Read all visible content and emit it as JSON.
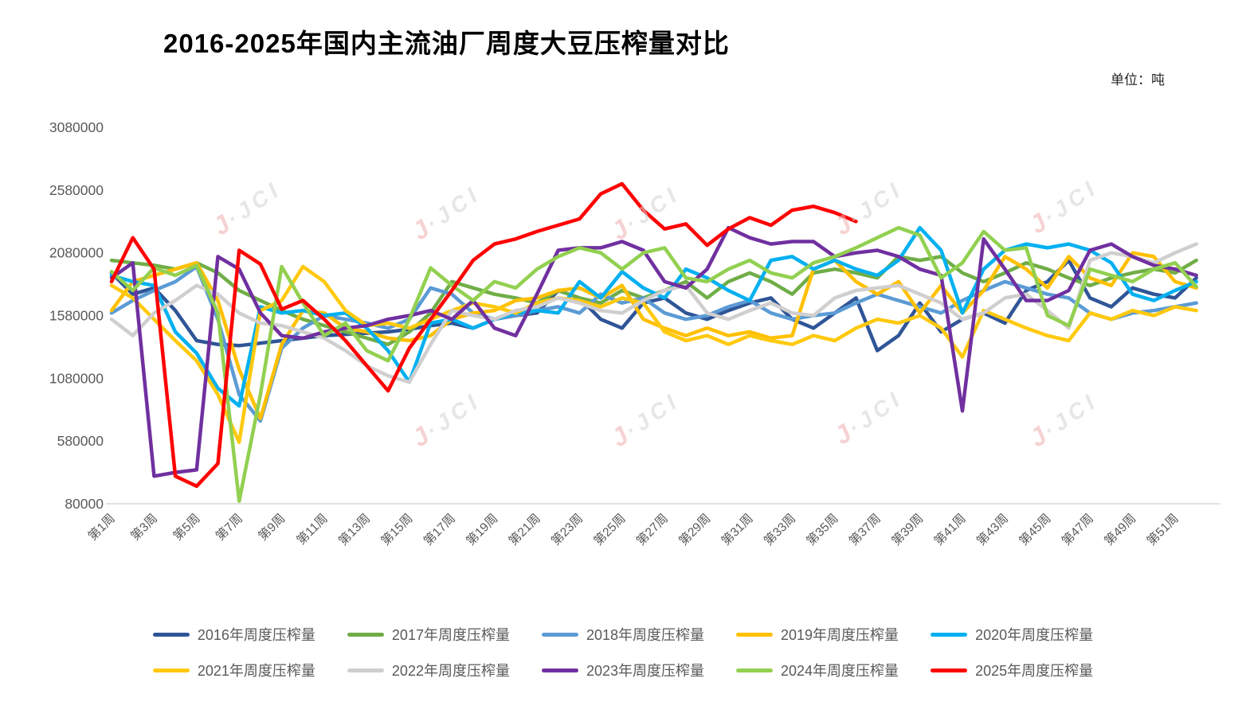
{
  "watermark": {
    "swoosh": "J",
    "text": "·JCI"
  },
  "chart_data": {
    "type": "line",
    "title": "2016-2025年国内主流油厂周度大豆压榨量对比",
    "unit_label": "单位：吨",
    "xlabel": "",
    "ylabel": "",
    "ylim": [
      80000,
      3080000
    ],
    "grid": false,
    "legend_position": "bottom",
    "y_ticks": [
      3080000,
      2580000,
      2080000,
      1580000,
      1080000,
      580000,
      80000
    ],
    "x_labels": [
      "第1周",
      "第3周",
      "第5周",
      "第7周",
      "第9周",
      "第11周",
      "第13周",
      "第15周",
      "第17周",
      "第19周",
      "第21周",
      "第23周",
      "第25周",
      "第27周",
      "第29周",
      "第31周",
      "第33周",
      "第35周",
      "第37周",
      "第39周",
      "第41周",
      "第43周",
      "第45周",
      "第47周",
      "第49周",
      "第51周"
    ],
    "weeks_total": 52,
    "series": [
      {
        "name": "2016年周度压榨量",
        "color": "#2F5597",
        "values": [
          1920000,
          1750000,
          1800000,
          1620000,
          1380000,
          1350000,
          1340000,
          1360000,
          1380000,
          1400000,
          1420000,
          1430000,
          1440000,
          1450000,
          1470000,
          1500000,
          1520000,
          1480000,
          1550000,
          1580000,
          1600000,
          1780000,
          1720000,
          1550000,
          1480000,
          1680000,
          1720000,
          1600000,
          1550000,
          1620000,
          1680000,
          1720000,
          1550000,
          1480000,
          1600000,
          1720000,
          1300000,
          1420000,
          1680000,
          1450000,
          1550000,
          1600000,
          1520000,
          1780000,
          1850000,
          2020000,
          1720000,
          1650000,
          1800000,
          1750000,
          1720000,
          1880000
        ]
      },
      {
        "name": "2017年周度压榨量",
        "color": "#70AD47",
        "values": [
          2020000,
          2000000,
          1980000,
          1950000,
          2000000,
          1920000,
          1780000,
          1700000,
          1620000,
          1550000,
          1500000,
          1450000,
          1400000,
          1350000,
          1450000,
          1600000,
          1850000,
          1800000,
          1750000,
          1720000,
          1680000,
          1780000,
          1720000,
          1680000,
          1780000,
          1720000,
          1780000,
          1850000,
          1720000,
          1850000,
          1920000,
          1850000,
          1750000,
          1920000,
          1950000,
          1920000,
          1880000,
          2050000,
          2020000,
          2050000,
          1920000,
          1850000,
          1920000,
          2000000,
          1950000,
          1880000,
          1820000,
          1880000,
          1920000,
          1950000,
          1920000,
          2020000
        ]
      },
      {
        "name": "2018年周度压榨量",
        "color": "#5B9BD5",
        "values": [
          1600000,
          1700000,
          1780000,
          1850000,
          1970000,
          1550000,
          950000,
          740000,
          1320000,
          1480000,
          1580000,
          1550000,
          1520000,
          1480000,
          1550000,
          1800000,
          1750000,
          1600000,
          1550000,
          1580000,
          1620000,
          1650000,
          1600000,
          1750000,
          1680000,
          1720000,
          1600000,
          1550000,
          1580000,
          1650000,
          1700000,
          1600000,
          1550000,
          1580000,
          1600000,
          1680000,
          1750000,
          1700000,
          1650000,
          1600000,
          1700000,
          1780000,
          1850000,
          1800000,
          1750000,
          1720000,
          1600000,
          1550000,
          1600000,
          1620000,
          1650000,
          1680000
        ]
      },
      {
        "name": "2019年周度压榨量",
        "color": "#FFC000",
        "values": [
          1620000,
          1850000,
          1900000,
          1950000,
          2000000,
          1700000,
          1150000,
          760000,
          1350000,
          1620000,
          1600000,
          1480000,
          1450000,
          1400000,
          1380000,
          1420000,
          1550000,
          1600000,
          1620000,
          1700000,
          1720000,
          1780000,
          1800000,
          1720000,
          1820000,
          1550000,
          1480000,
          1420000,
          1480000,
          1420000,
          1450000,
          1400000,
          1420000,
          1950000,
          2020000,
          1850000,
          1750000,
          1850000,
          1600000,
          1820000,
          1600000,
          1780000,
          2050000,
          1950000,
          1800000,
          2050000,
          1880000,
          1820000,
          2080000,
          2050000,
          1850000,
          1800000
        ]
      },
      {
        "name": "2020年周度压榨量",
        "color": "#00B0F0",
        "values": [
          1900000,
          1850000,
          1820000,
          1450000,
          1280000,
          1000000,
          860000,
          1650000,
          1600000,
          1620000,
          1580000,
          1600000,
          1480000,
          1300000,
          1050000,
          1520000,
          1550000,
          1480000,
          1550000,
          1600000,
          1620000,
          1600000,
          1850000,
          1720000,
          1930000,
          1800000,
          1720000,
          1950000,
          1880000,
          1780000,
          1700000,
          2020000,
          2050000,
          1950000,
          2020000,
          1950000,
          1900000,
          2020000,
          2280000,
          2100000,
          1600000,
          1950000,
          2100000,
          2150000,
          2120000,
          2150000,
          2100000,
          2000000,
          1750000,
          1700000,
          1780000,
          1850000
        ]
      },
      {
        "name": "2021年周度压榨量",
        "color": "#FFC90E",
        "values": [
          1820000,
          1720000,
          1550000,
          1380000,
          1220000,
          950000,
          570000,
          1620000,
          1700000,
          1970000,
          1850000,
          1620000,
          1500000,
          1520000,
          1480000,
          1550000,
          1620000,
          1680000,
          1650000,
          1600000,
          1680000,
          1720000,
          1700000,
          1650000,
          1720000,
          1680000,
          1450000,
          1380000,
          1420000,
          1350000,
          1420000,
          1380000,
          1350000,
          1420000,
          1380000,
          1480000,
          1550000,
          1520000,
          1580000,
          1480000,
          1250000,
          1620000,
          1550000,
          1480000,
          1420000,
          1380000,
          1600000,
          1550000,
          1620000,
          1580000,
          1650000,
          1620000
        ]
      },
      {
        "name": "2022年周度压榨量",
        "color": "#D0CECE",
        "values": [
          1550000,
          1420000,
          1600000,
          1700000,
          1820000,
          1750000,
          1600000,
          1520000,
          1500000,
          1450000,
          1400000,
          1300000,
          1180000,
          1100000,
          1050000,
          1350000,
          1620000,
          1580000,
          1550000,
          1620000,
          1650000,
          1720000,
          1680000,
          1620000,
          1600000,
          1700000,
          1780000,
          1820000,
          1600000,
          1550000,
          1620000,
          1680000,
          1600000,
          1580000,
          1720000,
          1780000,
          1800000,
          1820000,
          1750000,
          1680000,
          1550000,
          1600000,
          1720000,
          1750000,
          1620000,
          1480000,
          2020000,
          2080000,
          2050000,
          2000000,
          2080000,
          2150000
        ]
      },
      {
        "name": "2023年周度压榨量",
        "color": "#7030A0",
        "values": [
          1880000,
          2000000,
          300000,
          330000,
          350000,
          2050000,
          1950000,
          1600000,
          1420000,
          1400000,
          1450000,
          1480000,
          1500000,
          1550000,
          1580000,
          1620000,
          1550000,
          1700000,
          1480000,
          1420000,
          1750000,
          2100000,
          2120000,
          2120000,
          2170000,
          2100000,
          1850000,
          1800000,
          1950000,
          2280000,
          2200000,
          2150000,
          2170000,
          2170000,
          2050000,
          2080000,
          2100000,
          2050000,
          1950000,
          1900000,
          820000,
          2190000,
          1950000,
          1700000,
          1700000,
          1780000,
          2100000,
          2150000,
          2050000,
          1980000,
          1950000,
          1900000
        ]
      },
      {
        "name": "2024年周度压榨量",
        "color": "#92D050",
        "values": [
          1930000,
          1780000,
          1960000,
          1900000,
          1980000,
          1600000,
          100000,
          950000,
          1970000,
          1680000,
          1420000,
          1520000,
          1300000,
          1220000,
          1550000,
          1960000,
          1820000,
          1700000,
          1850000,
          1800000,
          1950000,
          2050000,
          2120000,
          2080000,
          1950000,
          2080000,
          2120000,
          1880000,
          1850000,
          1950000,
          2020000,
          1920000,
          1880000,
          2000000,
          2050000,
          2120000,
          2200000,
          2280000,
          2220000,
          1880000,
          2000000,
          2250000,
          2100000,
          2120000,
          1580000,
          1500000,
          1950000,
          1900000,
          1850000,
          1950000,
          2000000,
          1810000
        ]
      },
      {
        "name": "2025年周度压榨量",
        "color": "#FF0000",
        "values": [
          1850000,
          2200000,
          1950000,
          300000,
          220000,
          400000,
          2100000,
          1990000,
          1630000,
          1700000,
          1550000,
          1380000,
          1180000,
          980000,
          1320000,
          1550000,
          1780000,
          2020000,
          2150000,
          2190000,
          2250000,
          2300000,
          2350000,
          2550000,
          2630000,
          2420000,
          2270000,
          2310000,
          2140000,
          2270000,
          2360000,
          2300000,
          2420000,
          2450000,
          2400000,
          2330000
        ]
      }
    ]
  }
}
